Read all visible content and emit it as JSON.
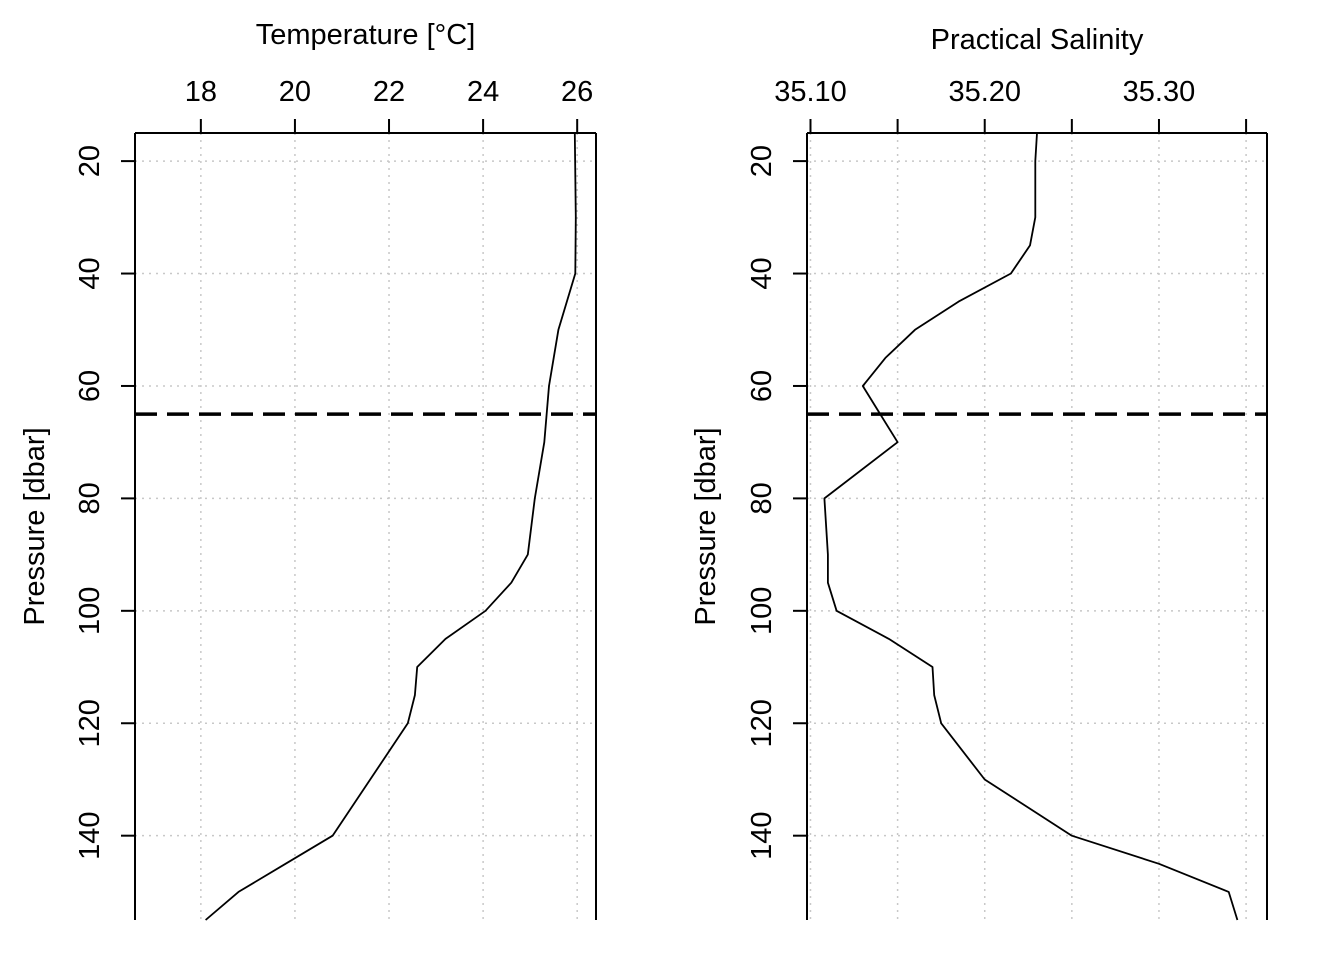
{
  "chart_data": [
    {
      "type": "line",
      "xlabel": "Temperature [°C]",
      "ylabel": "Pressure [dbar]",
      "x_axis_position": "top",
      "y_reversed": true,
      "xlim": [
        16.6,
        26.4
      ],
      "ylim": [
        155,
        15
      ],
      "x_ticks": [
        18,
        20,
        22,
        24,
        26
      ],
      "x_tick_labels": [
        "18",
        "20",
        "22",
        "24",
        "26"
      ],
      "y_ticks": [
        20,
        40,
        60,
        80,
        100,
        120,
        140
      ],
      "y_tick_labels": [
        "20",
        "40",
        "60",
        "80",
        "100",
        "120",
        "140"
      ],
      "grid": true,
      "reference_line": {
        "pressure": 65,
        "style": "dashed"
      },
      "series": [
        {
          "x": [
            25.95,
            25.97,
            25.96,
            25.6,
            25.4,
            25.3,
            25.1,
            24.95,
            24.6,
            24.05,
            23.2,
            22.6,
            22.55,
            22.4,
            21.6,
            20.8,
            19.8,
            18.8,
            18.1
          ],
          "y": [
            15,
            30,
            40,
            50,
            60,
            70,
            80,
            90,
            95,
            100,
            105,
            110,
            115,
            120,
            130,
            140,
            145,
            150,
            155
          ]
        }
      ]
    },
    {
      "type": "line",
      "xlabel": "Practical Salinity",
      "ylabel": "Pressure [dbar]",
      "x_axis_position": "top",
      "y_reversed": true,
      "xlim": [
        35.098,
        35.362
      ],
      "ylim": [
        155,
        15
      ],
      "x_ticks": [
        35.1,
        35.15,
        35.2,
        35.25,
        35.3,
        35.35
      ],
      "x_tick_labels": [
        "35.10",
        "",
        "35.20",
        "",
        "35.30",
        ""
      ],
      "y_ticks": [
        20,
        40,
        60,
        80,
        100,
        120,
        140
      ],
      "y_tick_labels": [
        "20",
        "40",
        "60",
        "80",
        "100",
        "120",
        "140"
      ],
      "grid": true,
      "reference_line": {
        "pressure": 65,
        "style": "dashed"
      },
      "series": [
        {
          "x": [
            35.23,
            35.229,
            35.229,
            35.226,
            35.215,
            35.185,
            35.16,
            35.143,
            35.13,
            35.14,
            35.15,
            35.108,
            35.11,
            35.11,
            35.115,
            35.145,
            35.17,
            35.171,
            35.175,
            35.2,
            35.225,
            35.25,
            35.3,
            35.34,
            35.345
          ],
          "y": [
            15,
            20,
            30,
            35,
            40,
            45,
            50,
            55,
            60,
            65,
            70,
            80,
            90,
            95,
            100,
            105,
            110,
            115,
            120,
            130,
            135,
            140,
            145,
            150,
            155
          ]
        }
      ]
    }
  ]
}
